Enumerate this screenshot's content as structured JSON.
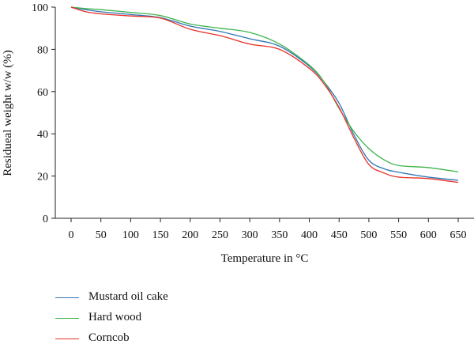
{
  "chart_data": {
    "type": "line",
    "title": "",
    "xlabel": "Temperature in °C",
    "ylabel": "Residueal weight w/w (%)",
    "xlim": [
      0,
      650
    ],
    "ylim": [
      0,
      100
    ],
    "xticks": [
      "0",
      "50",
      "100",
      "150",
      "200",
      "250",
      "300",
      "350",
      "400",
      "450",
      "500",
      "550",
      "600",
      "650"
    ],
    "yticks": [
      "0",
      "20",
      "40",
      "60",
      "80",
      "100"
    ],
    "grid": false,
    "legend_position": "bottom-left",
    "series": [
      {
        "name": "Mustard oil cake",
        "color": "#2e75b6",
        "x": [
          0,
          25,
          50,
          100,
          150,
          200,
          250,
          300,
          350,
          400,
          425,
          450,
          475,
          500,
          525,
          550,
          600,
          650
        ],
        "y": [
          100,
          98.8,
          97.8,
          96.5,
          95,
          91,
          88.5,
          85,
          81.5,
          72,
          64.5,
          54.5,
          39.5,
          27.5,
          23.5,
          21.8,
          19.5,
          18
        ]
      },
      {
        "name": "Hard wood",
        "color": "#3cb44b",
        "x": [
          0,
          25,
          50,
          100,
          150,
          200,
          250,
          300,
          350,
          400,
          425,
          450,
          475,
          500,
          525,
          550,
          600,
          650
        ],
        "y": [
          100,
          99.3,
          98.8,
          97.5,
          96,
          92,
          90,
          88,
          82.5,
          72.5,
          64.5,
          52,
          41,
          33,
          27.8,
          25,
          24,
          22
        ]
      },
      {
        "name": "Corncob",
        "color": "#e8312a",
        "x": [
          0,
          25,
          50,
          100,
          150,
          200,
          250,
          300,
          350,
          400,
          425,
          450,
          475,
          500,
          525,
          550,
          600,
          650
        ],
        "y": [
          100,
          97.8,
          96.8,
          95.8,
          94.8,
          89.5,
          86.5,
          82.5,
          80,
          71,
          63.5,
          52.5,
          38,
          25.5,
          21.5,
          19.5,
          18.8,
          17
        ]
      }
    ]
  }
}
